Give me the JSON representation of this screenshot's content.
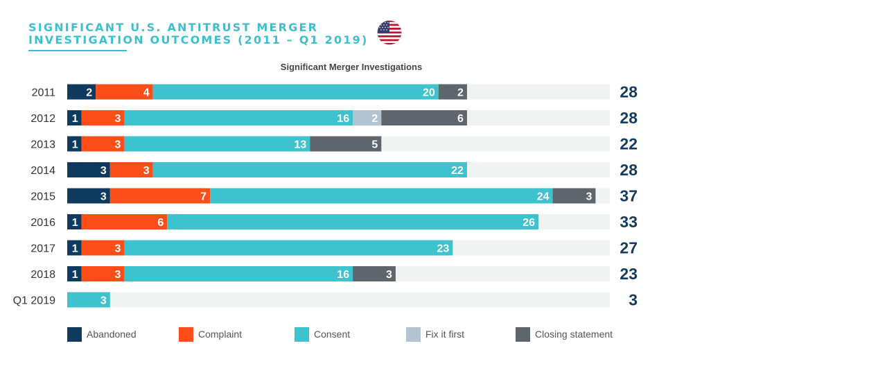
{
  "header": {
    "title_line1": "SIGNIFICANT U.S. ANTITRUST MERGER",
    "title_line2": "INVESTIGATION OUTCOMES (2011 – Q1 2019)",
    "flag_icon": "us-flag-icon"
  },
  "chart_data": {
    "type": "bar",
    "orientation": "horizontal",
    "stacked": true,
    "title": "Significant Merger Investigations",
    "categories": [
      "2011",
      "2012",
      "2013",
      "2014",
      "2015",
      "2016",
      "2017",
      "2018",
      "Q1 2019"
    ],
    "series": [
      {
        "name": "Abandoned",
        "color": "#0f3a5f",
        "values": [
          2,
          1,
          1,
          3,
          3,
          1,
          1,
          1,
          0
        ]
      },
      {
        "name": "Complaint",
        "color": "#fc4e19",
        "values": [
          4,
          3,
          3,
          3,
          7,
          6,
          3,
          3,
          0
        ]
      },
      {
        "name": "Consent",
        "color": "#3ec3ce",
        "values": [
          20,
          16,
          13,
          22,
          24,
          26,
          23,
          16,
          3
        ]
      },
      {
        "name": "Fix it first",
        "color": "#b4c3d2",
        "values": [
          0,
          2,
          0,
          0,
          0,
          0,
          0,
          0,
          0
        ]
      },
      {
        "name": "Closing statement",
        "color": "#5f656d",
        "values": [
          2,
          6,
          5,
          0,
          3,
          0,
          0,
          3,
          0
        ]
      }
    ],
    "totals": [
      28,
      28,
      22,
      28,
      37,
      33,
      27,
      23,
      3
    ],
    "xlim": [
      0,
      38
    ],
    "grid": false,
    "legend_position": "bottom"
  }
}
